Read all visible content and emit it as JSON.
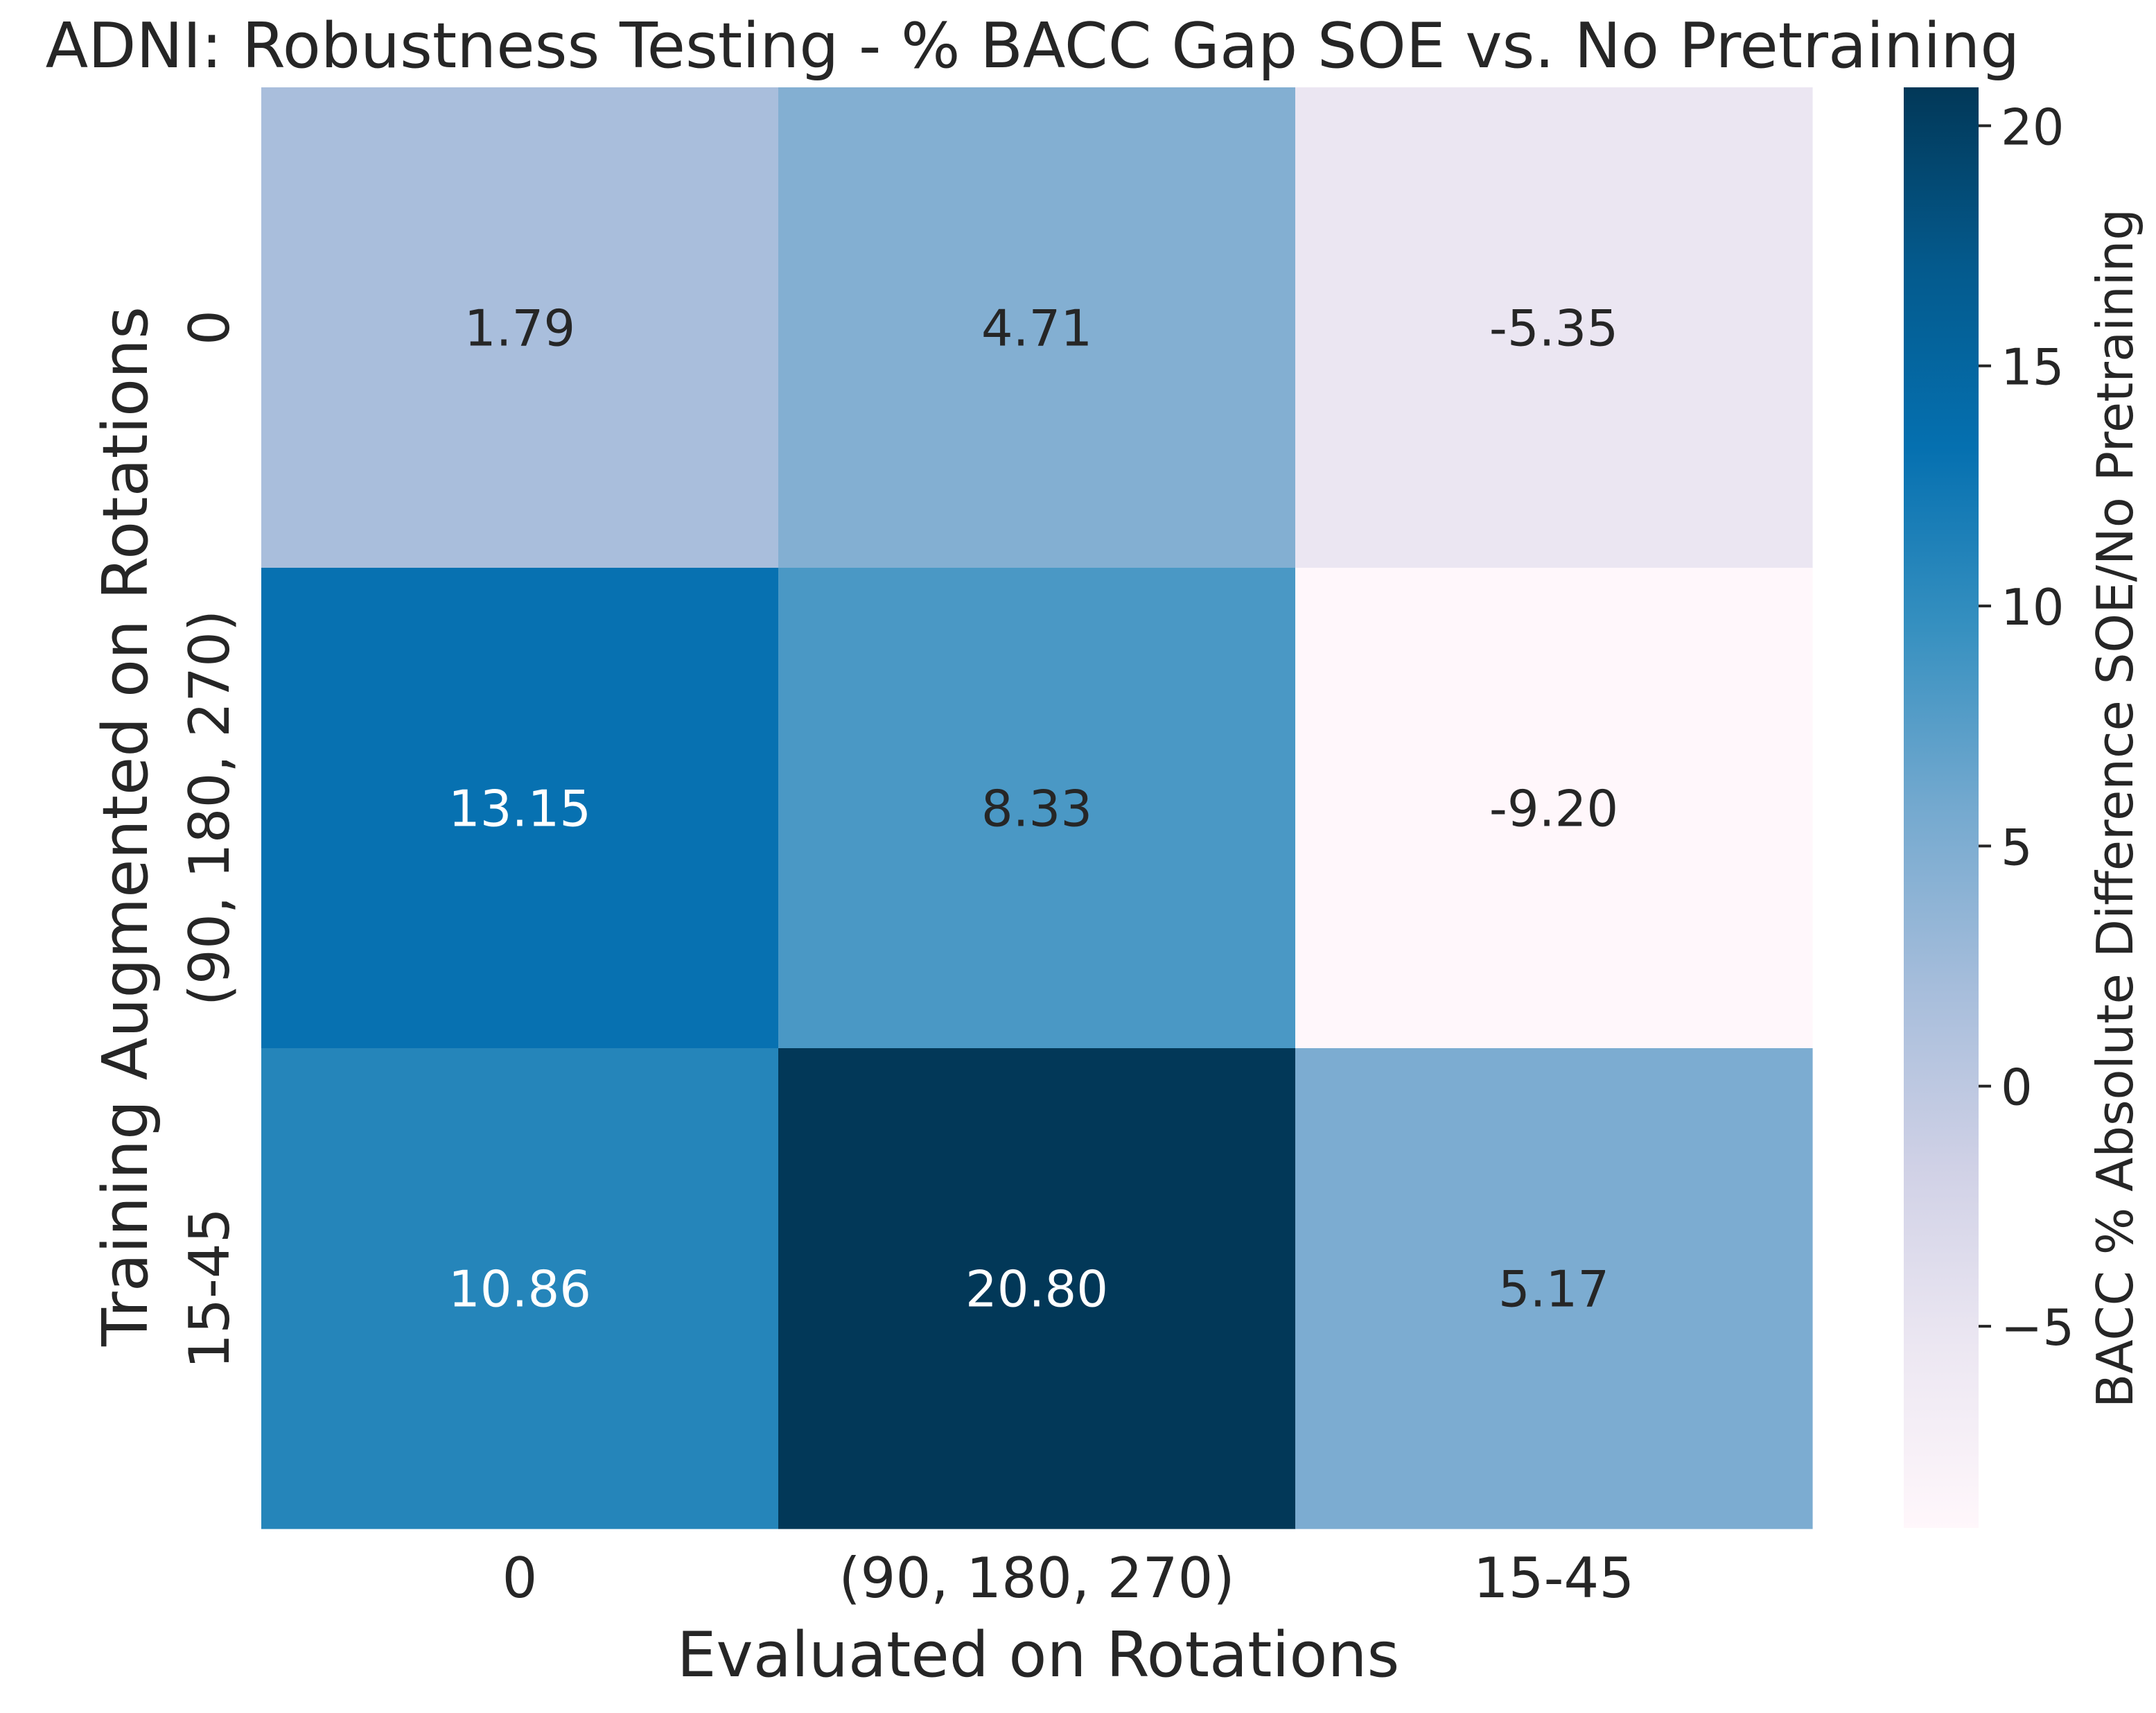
{
  "chart_data": {
    "type": "heatmap",
    "title": "ADNI: Robustness Testing - % BACC Gap SOE vs. No Pretraining",
    "xlabel": "Evaluated on Rotations",
    "ylabel": "Training Augmented on Rotations",
    "x_categories": [
      "0",
      "(90, 180, 270)",
      "15-45"
    ],
    "y_categories": [
      "0",
      "(90, 180, 270)",
      "15-45"
    ],
    "values": [
      [
        1.79,
        4.71,
        -5.35
      ],
      [
        13.15,
        8.33,
        -9.2
      ],
      [
        10.86,
        20.8,
        5.17
      ]
    ],
    "cell_labels": [
      [
        "1.79",
        "4.71",
        "-5.35"
      ],
      [
        "13.15",
        "8.33",
        "-9.20"
      ],
      [
        "10.86",
        "20.80",
        "5.17"
      ]
    ],
    "colormap": "PuBu",
    "colorbar": {
      "label": "BACC % Absolute Difference SOE/No Pretraining",
      "vmin": -9.2,
      "vmax": 20.8,
      "ticks": [
        -5,
        0,
        5,
        10,
        15,
        20
      ],
      "tick_labels": [
        "−5",
        "0",
        "5",
        "10",
        "15",
        "20"
      ]
    },
    "colors": {
      "cmap_stops": [
        "#fff7fb",
        "#ece7f2",
        "#d0d1e6",
        "#a6bddb",
        "#74a9cf",
        "#3690c0",
        "#0570b0",
        "#045a8d",
        "#023858"
      ],
      "annotation_light": "#ffffff",
      "annotation_dark": "#262626"
    }
  }
}
